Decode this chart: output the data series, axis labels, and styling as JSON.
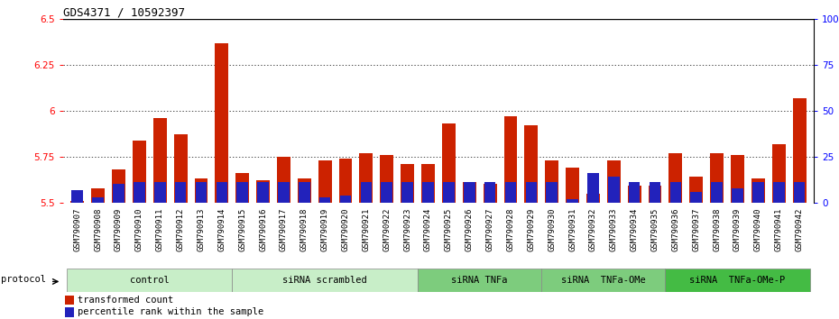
{
  "title": "GDS4371 / 10592397",
  "samples": [
    "GSM790907",
    "GSM790908",
    "GSM790909",
    "GSM790910",
    "GSM790911",
    "GSM790912",
    "GSM790913",
    "GSM790914",
    "GSM790915",
    "GSM790916",
    "GSM790917",
    "GSM790918",
    "GSM790919",
    "GSM790920",
    "GSM790921",
    "GSM790922",
    "GSM790923",
    "GSM790924",
    "GSM790925",
    "GSM790926",
    "GSM790927",
    "GSM790928",
    "GSM790929",
    "GSM790930",
    "GSM790931",
    "GSM790932",
    "GSM790933",
    "GSM790934",
    "GSM790935",
    "GSM790936",
    "GSM790937",
    "GSM790938",
    "GSM790939",
    "GSM790940",
    "GSM790941",
    "GSM790942"
  ],
  "red_values": [
    5.51,
    5.58,
    5.68,
    5.84,
    5.96,
    5.87,
    5.63,
    6.37,
    5.66,
    5.62,
    5.75,
    5.63,
    5.73,
    5.74,
    5.77,
    5.76,
    5.71,
    5.71,
    5.93,
    5.61,
    5.6,
    5.97,
    5.92,
    5.73,
    5.69,
    5.55,
    5.73,
    5.59,
    5.59,
    5.77,
    5.64,
    5.77,
    5.76,
    5.63,
    5.82,
    6.07
  ],
  "blue_pct": [
    7,
    3,
    10,
    11,
    11,
    11,
    11,
    11,
    11,
    11,
    11,
    11,
    3,
    4,
    11,
    11,
    11,
    11,
    11,
    11,
    11,
    11,
    11,
    11,
    2,
    16,
    14,
    11,
    11,
    11,
    6,
    11,
    8,
    11,
    11,
    11
  ],
  "groups": [
    {
      "label": "control",
      "start": 0,
      "end": 7,
      "color": "#c8eec8"
    },
    {
      "label": "siRNA scrambled",
      "start": 8,
      "end": 16,
      "color": "#c8eec8"
    },
    {
      "label": "siRNA TNFa",
      "start": 17,
      "end": 22,
      "color": "#7dcc7d"
    },
    {
      "label": "siRNA  TNFa-OMe",
      "start": 23,
      "end": 28,
      "color": "#7dcc7d"
    },
    {
      "label": "siRNA  TNFa-OMe-P",
      "start": 29,
      "end": 35,
      "color": "#44bb44"
    }
  ],
  "ylim_left": [
    5.5,
    6.5
  ],
  "ylim_right": [
    0,
    100
  ],
  "yticks_left": [
    5.5,
    5.75,
    6.0,
    6.25,
    6.5
  ],
  "ytick_labels_left": [
    "5.5",
    "5.75",
    "6",
    "6.25",
    "6.5"
  ],
  "yticks_right": [
    0,
    25,
    50,
    75,
    100
  ],
  "ytick_labels_right": [
    "0",
    "25",
    "50",
    "75",
    "100%"
  ],
  "grid_values": [
    5.75,
    6.0,
    6.25
  ],
  "bar_width": 0.65,
  "red_color": "#cc2200",
  "blue_color": "#2222bb",
  "title_fontsize": 9,
  "tick_fontsize": 6.5,
  "group_label_fontsize": 7.5,
  "legend_fontsize": 7.5
}
